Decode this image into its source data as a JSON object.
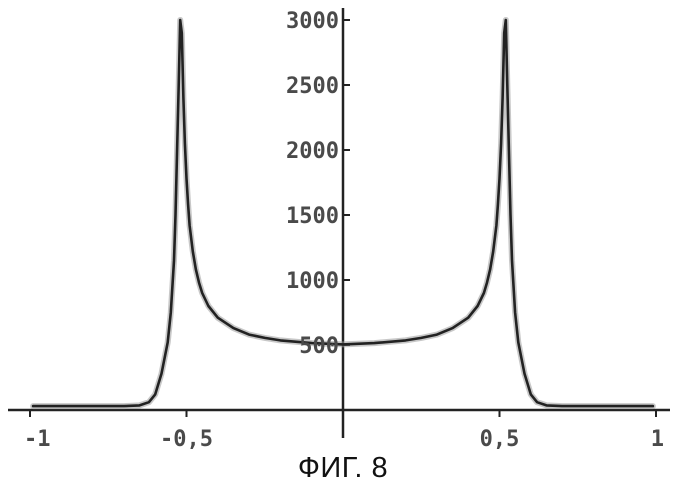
{
  "figure": {
    "caption": "ФИГ. 8"
  },
  "chart_data": {
    "type": "line",
    "title": "",
    "xlabel": "",
    "ylabel": "",
    "xlim": [
      -1,
      1
    ],
    "ylim": [
      0,
      3000
    ],
    "grid": false,
    "x_ticks": [
      {
        "value": -1,
        "label": "-1"
      },
      {
        "value": -0.5,
        "label": "-0,5"
      },
      {
        "value": 0.5,
        "label": "0,5"
      },
      {
        "value": 1,
        "label": "1"
      }
    ],
    "y_ticks": [
      {
        "value": 500,
        "label": "500"
      },
      {
        "value": 1000,
        "label": "1000"
      },
      {
        "value": 1500,
        "label": "1500"
      },
      {
        "value": 2000,
        "label": "2000"
      },
      {
        "value": 2500,
        "label": "2500"
      },
      {
        "value": 3000,
        "label": "3000"
      }
    ],
    "series": [
      {
        "color": "#222222",
        "x": [
          -0.99,
          -0.9,
          -0.8,
          -0.7,
          -0.65,
          -0.62,
          -0.6,
          -0.58,
          -0.56,
          -0.55,
          -0.54,
          -0.535,
          -0.53,
          -0.525,
          -0.52,
          -0.515,
          -0.51,
          -0.505,
          -0.5,
          -0.495,
          -0.49,
          -0.48,
          -0.47,
          -0.46,
          -0.45,
          -0.43,
          -0.4,
          -0.35,
          -0.3,
          -0.25,
          -0.2,
          -0.1,
          0,
          0.1,
          0.2,
          0.25,
          0.3,
          0.35,
          0.4,
          0.43,
          0.45,
          0.46,
          0.47,
          0.48,
          0.49,
          0.495,
          0.5,
          0.505,
          0.51,
          0.515,
          0.52,
          0.525,
          0.53,
          0.535,
          0.54,
          0.55,
          0.56,
          0.58,
          0.6,
          0.62,
          0.65,
          0.7,
          0.8,
          0.9,
          0.99
        ],
        "y": [
          30,
          30,
          30,
          30,
          35,
          60,
          120,
          280,
          520,
          750,
          1150,
          1500,
          2000,
          2500,
          3000,
          2900,
          2400,
          2050,
          1780,
          1580,
          1420,
          1220,
          1080,
          980,
          900,
          800,
          710,
          630,
          580,
          555,
          535,
          515,
          505,
          515,
          535,
          555,
          580,
          630,
          710,
          800,
          900,
          980,
          1080,
          1220,
          1420,
          1580,
          1780,
          2050,
          2400,
          2900,
          3000,
          2500,
          2000,
          1500,
          1150,
          750,
          520,
          280,
          120,
          60,
          35,
          30,
          30,
          30,
          30
        ]
      }
    ]
  }
}
